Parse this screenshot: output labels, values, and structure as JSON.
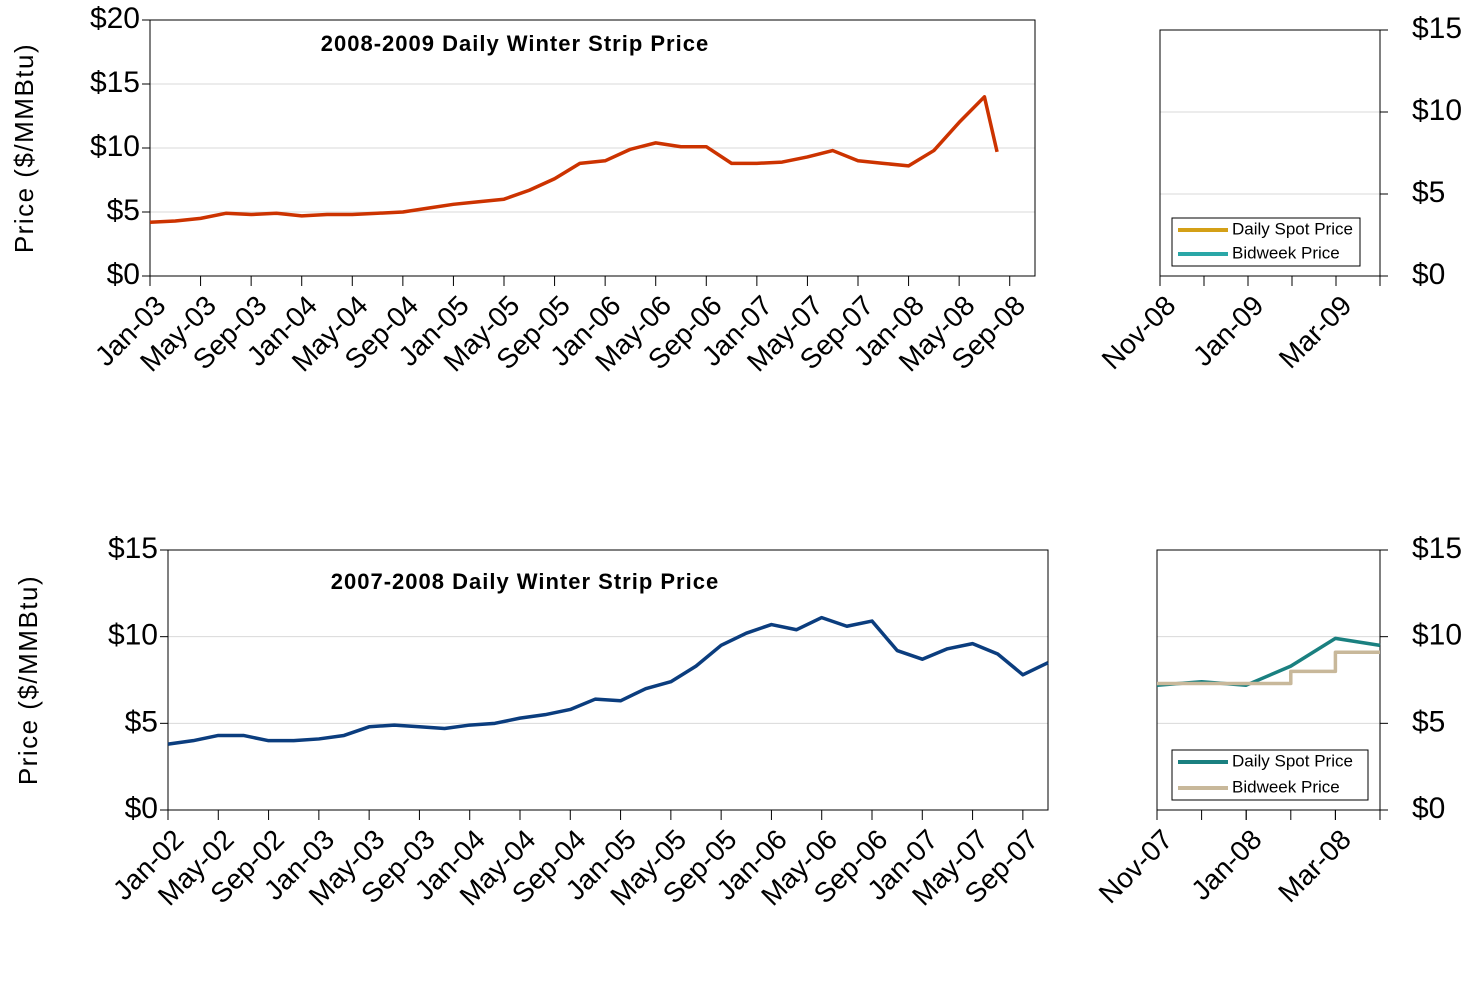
{
  "chart_data": [
    {
      "type": "line",
      "title": "2008-2009 Daily Winter Strip Price",
      "y_label": "Price ($/MMBtu)",
      "y_axis_side": "left",
      "x": [
        "Jan-03",
        "Mar-03",
        "May-03",
        "Jul-03",
        "Sep-03",
        "Nov-03",
        "Jan-04",
        "Mar-04",
        "May-04",
        "Jul-04",
        "Sep-04",
        "Nov-04",
        "Jan-05",
        "Mar-05",
        "May-05",
        "Jul-05",
        "Sep-05",
        "Nov-05",
        "Jan-06",
        "Mar-06",
        "May-06",
        "Jul-06",
        "Sep-06",
        "Nov-06",
        "Jan-07",
        "Mar-07",
        "May-07",
        "Jul-07",
        "Sep-07",
        "Nov-07",
        "Jan-08",
        "Mar-08",
        "May-08",
        "Jul-08",
        "Aug-08"
      ],
      "series": [
        {
          "name": null,
          "color": "#cc3300",
          "values": [
            4.2,
            4.3,
            4.5,
            4.9,
            4.8,
            4.9,
            4.7,
            4.8,
            4.8,
            4.9,
            5.0,
            5.3,
            5.6,
            5.8,
            6.0,
            6.7,
            7.6,
            8.8,
            9.0,
            9.9,
            10.4,
            10.1,
            10.1,
            8.8,
            8.8,
            8.9,
            9.3,
            9.8,
            9.0,
            8.8,
            8.6,
            9.8,
            12.0,
            14.0,
            9.7
          ]
        }
      ],
      "xlim": [
        "Jan-03",
        "Nov-08"
      ],
      "xticks": [
        "Jan-03",
        "May-03",
        "Sep-03",
        "Jan-04",
        "May-04",
        "Sep-04",
        "Jan-05",
        "May-05",
        "Sep-05",
        "Jan-06",
        "May-06",
        "Sep-06",
        "Jan-07",
        "May-07",
        "Sep-07",
        "Jan-08",
        "May-08",
        "Sep-08"
      ],
      "ylim": [
        0,
        20
      ],
      "yticks": [
        {
          "value": 0,
          "label": "$0"
        },
        {
          "value": 5,
          "label": "$5"
        },
        {
          "value": 10,
          "label": "$10"
        },
        {
          "value": 15,
          "label": "$15"
        },
        {
          "value": 20,
          "label": "$20"
        }
      ],
      "grid": true
    },
    {
      "type": "line",
      "y_axis_side": "right",
      "legend": "lower center",
      "x": [],
      "series": [
        {
          "name": "Daily Spot Price",
          "color": "#d4a017",
          "values": []
        },
        {
          "name": "Bidweek Price",
          "color": "#2aa7a7",
          "values": []
        }
      ],
      "xlim": [
        "Nov-08",
        "Apr-09"
      ],
      "xticks": [
        "Nov-08",
        "Jan-09",
        "Mar-09"
      ],
      "ylim": [
        0,
        15
      ],
      "yticks": [
        {
          "value": 0,
          "label": "$0"
        },
        {
          "value": 5,
          "label": "$5"
        },
        {
          "value": 10,
          "label": "$10"
        },
        {
          "value": 15,
          "label": "$15"
        }
      ],
      "grid": true
    },
    {
      "type": "line",
      "title": "2007-2008 Daily Winter Strip Price",
      "y_label": "Price ($/MMBtu)",
      "y_axis_side": "left",
      "x": [
        "Jan-02",
        "Mar-02",
        "May-02",
        "Jul-02",
        "Sep-02",
        "Nov-02",
        "Jan-03",
        "Mar-03",
        "May-03",
        "Jul-03",
        "Sep-03",
        "Nov-03",
        "Jan-04",
        "Mar-04",
        "May-04",
        "Jul-04",
        "Sep-04",
        "Nov-04",
        "Jan-05",
        "Mar-05",
        "May-05",
        "Jul-05",
        "Sep-05",
        "Nov-05",
        "Jan-06",
        "Mar-06",
        "May-06",
        "Jul-06",
        "Sep-06",
        "Nov-06",
        "Jan-07",
        "Mar-07",
        "May-07",
        "Jul-07",
        "Sep-07",
        "Nov-07"
      ],
      "series": [
        {
          "name": null,
          "color": "#0b3d7e",
          "values": [
            3.8,
            4.0,
            4.3,
            4.3,
            4.0,
            4.0,
            4.1,
            4.3,
            4.8,
            4.9,
            4.8,
            4.7,
            4.9,
            5.0,
            5.3,
            5.5,
            5.8,
            6.4,
            6.3,
            7.0,
            7.4,
            8.3,
            9.5,
            10.2,
            10.7,
            10.4,
            11.1,
            10.6,
            10.9,
            9.2,
            8.7,
            9.3,
            9.6,
            9.0,
            7.8,
            8.5
          ]
        }
      ],
      "xlim": [
        "Jan-02",
        "Nov-07"
      ],
      "xticks": [
        "Jan-02",
        "May-02",
        "Sep-02",
        "Jan-03",
        "May-03",
        "Sep-03",
        "Jan-04",
        "May-04",
        "Sep-04",
        "Jan-05",
        "May-05",
        "Sep-05",
        "Jan-06",
        "May-06",
        "Sep-06",
        "Jan-07",
        "May-07",
        "Sep-07"
      ],
      "ylim": [
        0,
        15
      ],
      "yticks": [
        {
          "value": 0,
          "label": "$0"
        },
        {
          "value": 5,
          "label": "$5"
        },
        {
          "value": 10,
          "label": "$10"
        },
        {
          "value": 15,
          "label": "$15"
        }
      ],
      "grid": true
    },
    {
      "type": "line",
      "y_axis_side": "right",
      "legend": "lower center",
      "x": [
        "Nov-07",
        "Dec-07",
        "Jan-08",
        "Feb-08",
        "Mar-08",
        "Apr-08"
      ],
      "series": [
        {
          "name": "Daily Spot Price",
          "color": "#1a8080",
          "values": [
            7.2,
            7.4,
            7.2,
            8.3,
            9.9,
            9.5
          ]
        },
        {
          "name": "Bidweek Price",
          "color": "#c8b89a",
          "step": true,
          "values": [
            7.3,
            7.3,
            7.3,
            8.0,
            9.1,
            9.1
          ]
        }
      ],
      "xlim": [
        "Nov-07",
        "Apr-08"
      ],
      "xticks": [
        "Nov-07",
        "Jan-08",
        "Mar-08"
      ],
      "ylim": [
        0,
        15
      ],
      "yticks": [
        {
          "value": 0,
          "label": "$0"
        },
        {
          "value": 5,
          "label": "$5"
        },
        {
          "value": 10,
          "label": "$10"
        },
        {
          "value": 15,
          "label": "$15"
        }
      ],
      "grid": true
    }
  ]
}
